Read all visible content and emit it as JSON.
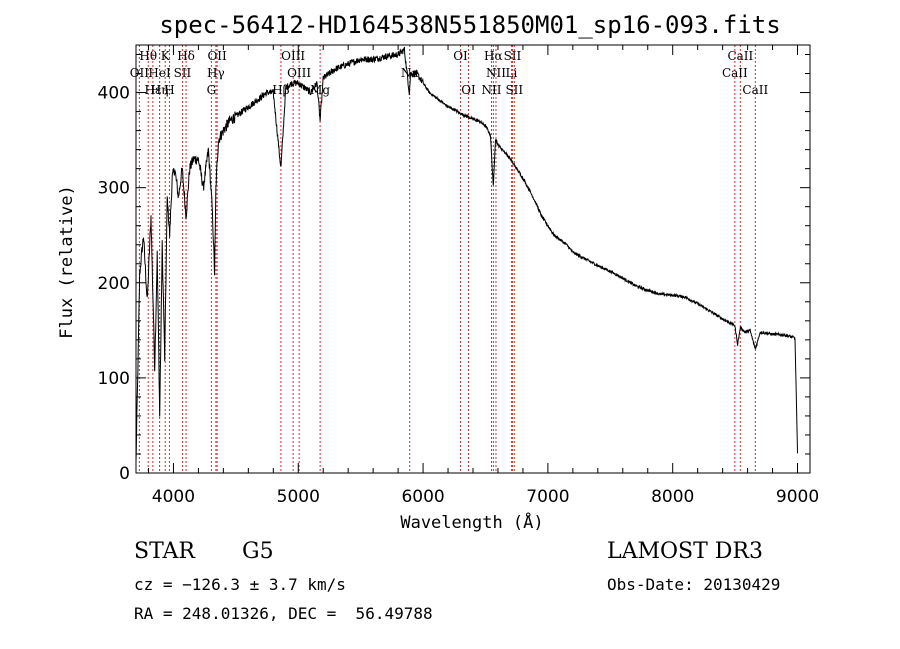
{
  "chart_data": {
    "type": "line",
    "title": "spec-56412-HD164538N551850M01_sp16-093.fits",
    "xlabel": "Wavelength (Å)",
    "ylabel": "Flux (relative)",
    "xlim": [
      3700,
      9100
    ],
    "ylim": [
      0,
      450
    ],
    "xticks": [
      4000,
      5000,
      6000,
      7000,
      8000,
      9000
    ],
    "xtick_labels": [
      "4000",
      "5000",
      "6000",
      "7000",
      "8000",
      "9000"
    ],
    "yticks": [
      0,
      100,
      200,
      300,
      400
    ],
    "ytick_labels": [
      "0",
      "100",
      "200",
      "300",
      "400"
    ],
    "series": [
      {
        "name": "spectrum",
        "x": [
          3700,
          3730,
          3760,
          3790,
          3820,
          3850,
          3870,
          3890,
          3910,
          3930,
          3950,
          3970,
          3990,
          4010,
          4040,
          4070,
          4101,
          4130,
          4160,
          4200,
          4240,
          4280,
          4310,
          4330,
          4340,
          4360,
          4400,
          4450,
          4500,
          4550,
          4600,
          4650,
          4700,
          4750,
          4800,
          4861,
          4900,
          4950,
          5000,
          5050,
          5100,
          5150,
          5175,
          5200,
          5250,
          5300,
          5400,
          5500,
          5600,
          5700,
          5800,
          5850,
          5890,
          5900,
          5950,
          6000,
          6050,
          6100,
          6150,
          6200,
          6250,
          6300,
          6350,
          6400,
          6450,
          6500,
          6540,
          6563,
          6580,
          6600,
          6650,
          6700,
          6750,
          6800,
          6850,
          6900,
          6950,
          7000,
          7050,
          7100,
          7150,
          7200,
          7300,
          7400,
          7500,
          7600,
          7700,
          7800,
          7900,
          8000,
          8100,
          8200,
          8300,
          8400,
          8498,
          8520,
          8542,
          8580,
          8620,
          8662,
          8700,
          8800,
          8900,
          8980,
          9000
        ],
        "values": [
          10,
          210,
          250,
          180,
          270,
          110,
          230,
          60,
          240,
          120,
          290,
          250,
          310,
          320,
          290,
          320,
          270,
          320,
          330,
          330,
          300,
          340,
          280,
          210,
          300,
          350,
          360,
          370,
          375,
          380,
          385,
          390,
          395,
          400,
          400,
          320,
          405,
          410,
          410,
          405,
          400,
          410,
          370,
          415,
          420,
          425,
          430,
          435,
          435,
          438,
          440,
          445,
          400,
          420,
          420,
          410,
          400,
          395,
          390,
          385,
          382,
          378,
          375,
          372,
          370,
          365,
          355,
          300,
          352,
          345,
          338,
          330,
          320,
          310,
          298,
          285,
          270,
          260,
          250,
          245,
          240,
          232,
          225,
          218,
          212,
          205,
          197,
          192,
          188,
          187,
          185,
          178,
          170,
          162,
          155,
          135,
          153,
          148,
          150,
          130,
          148,
          146,
          145,
          142,
          20
        ]
      }
    ],
    "spectral_lines": [
      {
        "label": "Hθ",
        "wavelength": 3798,
        "row": 1
      },
      {
        "label": "K",
        "wavelength": 3934,
        "row": 1
      },
      {
        "label": "Hδ",
        "wavelength": 4101,
        "row": 1
      },
      {
        "label": "OII",
        "wavelength": 4350,
        "row": 1
      },
      {
        "label": "OIII",
        "wavelength": 4959,
        "row": 1
      },
      {
        "label": "OI",
        "wavelength": 6300,
        "row": 1
      },
      {
        "label": "Hα",
        "wavelength": 6563,
        "row": 1
      },
      {
        "label": "SII",
        "wavelength": 6716,
        "row": 1
      },
      {
        "label": "CaII",
        "wavelength": 8542,
        "row": 1
      },
      {
        "label": "OII",
        "wavelength": 3727,
        "row": 2
      },
      {
        "label": "HeI",
        "wavelength": 3889,
        "row": 2
      },
      {
        "label": "SII",
        "wavelength": 4072,
        "row": 2
      },
      {
        "label": "Hγ",
        "wavelength": 4340,
        "row": 2
      },
      {
        "label": "OIII",
        "wavelength": 5007,
        "row": 2
      },
      {
        "label": "Na",
        "wavelength": 5893,
        "row": 2
      },
      {
        "label": "NII",
        "wavelength": 6584,
        "row": 2
      },
      {
        "label": "Li",
        "wavelength": 6708,
        "row": 2
      },
      {
        "label": "CaII",
        "wavelength": 8498,
        "row": 2
      },
      {
        "label": "Hε",
        "wavelength": 3835,
        "row": 3
      },
      {
        "label": "Hη",
        "wavelength": 3889,
        "row": 3
      },
      {
        "label": "H",
        "wavelength": 3968,
        "row": 3
      },
      {
        "label": "G",
        "wavelength": 4304,
        "row": 3
      },
      {
        "label": "Hβ",
        "wavelength": 4861,
        "row": 3
      },
      {
        "label": "Mg",
        "wavelength": 5175,
        "row": 3
      },
      {
        "label": "OI",
        "wavelength": 6364,
        "row": 3
      },
      {
        "label": "NII",
        "wavelength": 6548,
        "row": 3
      },
      {
        "label": "SII",
        "wavelength": 6731,
        "row": 3
      },
      {
        "label": "CaII",
        "wavelength": 8662,
        "row": 3
      }
    ],
    "colors": {
      "line": "#000000",
      "marker": "#cc3333"
    }
  },
  "info": {
    "object_class": "STAR",
    "subclass": "G5",
    "redshift": "cz = −126.3 ± 3.7 km/s",
    "coords": "RA = 248.01326, DEC =  56.49788",
    "survey": "LAMOST DR3",
    "obs_date": "Obs-Date: 20130429"
  }
}
